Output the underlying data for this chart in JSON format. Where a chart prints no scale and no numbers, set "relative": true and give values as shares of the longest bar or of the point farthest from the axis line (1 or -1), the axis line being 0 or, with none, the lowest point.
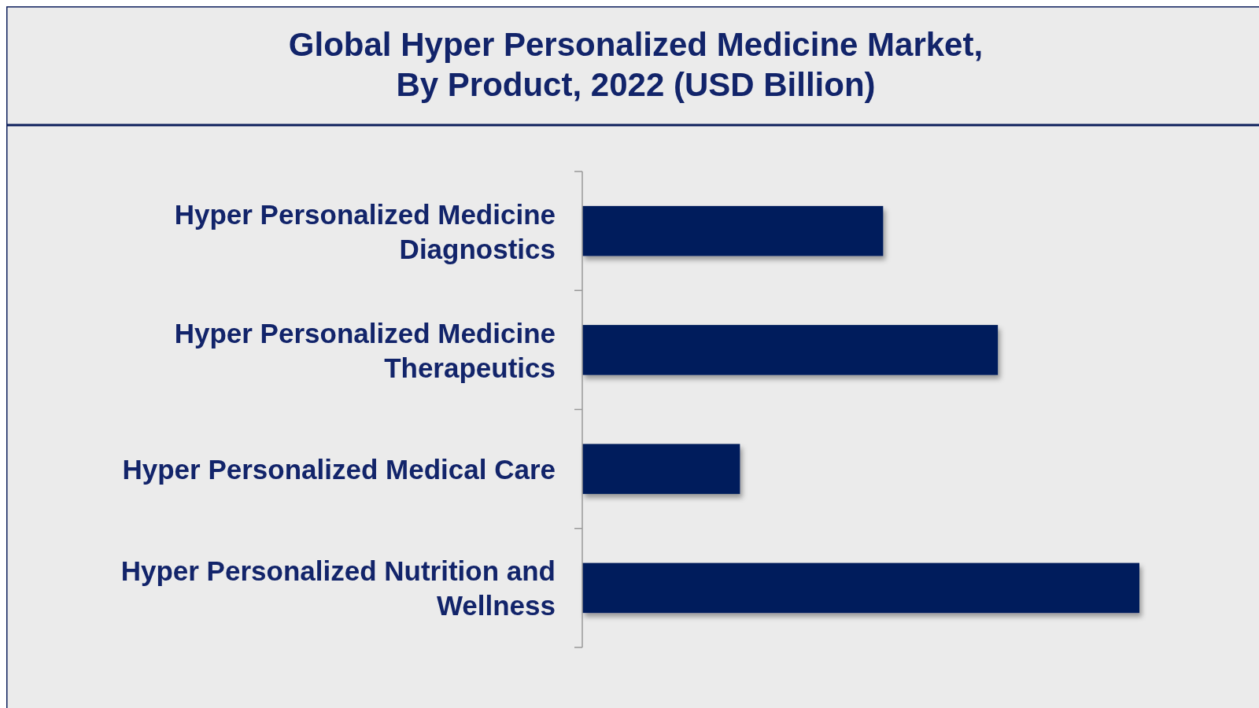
{
  "chart_data": {
    "type": "bar",
    "orientation": "horizontal",
    "relative": true,
    "title": "Global Hyper Personalized Medicine Market,\nBy Product, 2022 (USD Billion)",
    "categories": [
      "Hyper Personalized Medicine Diagnostics",
      "Hyper Personalized Medicine Therapeutics",
      "Hyper Personalized Medical Care",
      "Hyper Personalized Nutrition and Wellness"
    ],
    "values": [
      0.54,
      0.746,
      0.283,
      1
    ],
    "color": "#001f5b"
  }
}
